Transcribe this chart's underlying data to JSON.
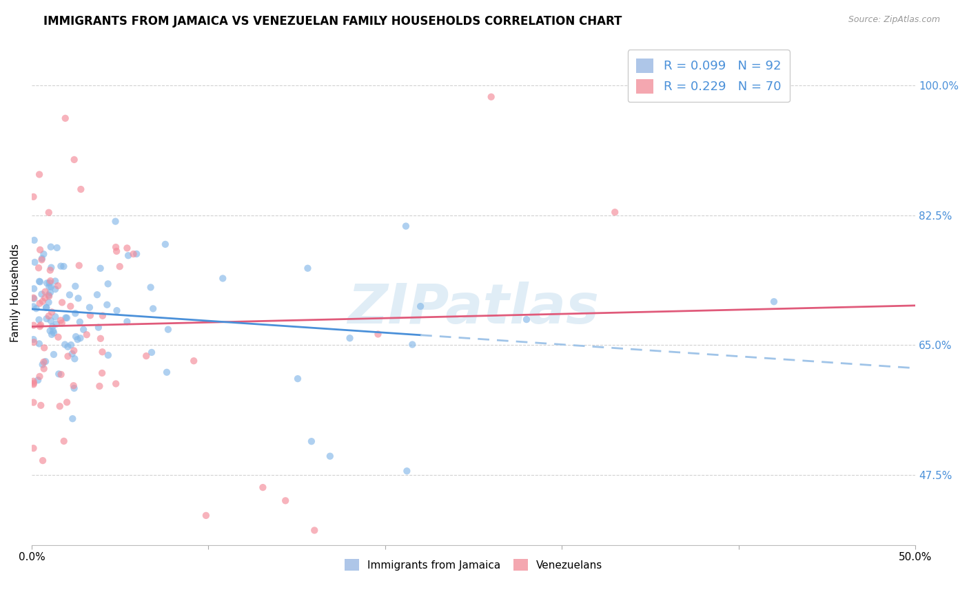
{
  "title": "IMMIGRANTS FROM JAMAICA VS VENEZUELAN FAMILY HOUSEHOLDS CORRELATION CHART",
  "source": "Source: ZipAtlas.com",
  "ylabel": "Family Households",
  "ytick_labels": [
    "47.5%",
    "65.0%",
    "82.5%",
    "100.0%"
  ],
  "ytick_values": [
    0.475,
    0.65,
    0.825,
    1.0
  ],
  "xlim": [
    0.0,
    0.5
  ],
  "ylim": [
    0.38,
    1.06
  ],
  "legend_entries": [
    {
      "label": "R = 0.099   N = 92",
      "color": "#aec6e8"
    },
    {
      "label": "R = 0.229   N = 70",
      "color": "#f4a7b0"
    }
  ],
  "legend_bottom": [
    {
      "label": "Immigrants from Jamaica",
      "color": "#aec6e8"
    },
    {
      "label": "Venezuelans",
      "color": "#f4a7b0"
    }
  ],
  "jamaica_color": "#85b8e8",
  "venezuela_color": "#f48a99",
  "trendline_jamaica_solid_color": "#4a90d9",
  "trendline_jamaica_dashed_color": "#a0c4e8",
  "trendline_venezuela_color": "#e05a7a",
  "watermark": "ZIPatlas",
  "watermark_color": "#c8dff0",
  "background_color": "#ffffff",
  "grid_color": "#cccccc",
  "title_fontsize": 12,
  "axis_label_fontsize": 11,
  "tick_fontsize": 11,
  "scatter_size": 55,
  "scatter_alpha": 0.65,
  "trendline_linewidth": 2.0,
  "jamaica_intercept": 0.695,
  "jamaica_slope": 0.065,
  "venezuela_intercept": 0.665,
  "venezuela_slope": 0.34
}
